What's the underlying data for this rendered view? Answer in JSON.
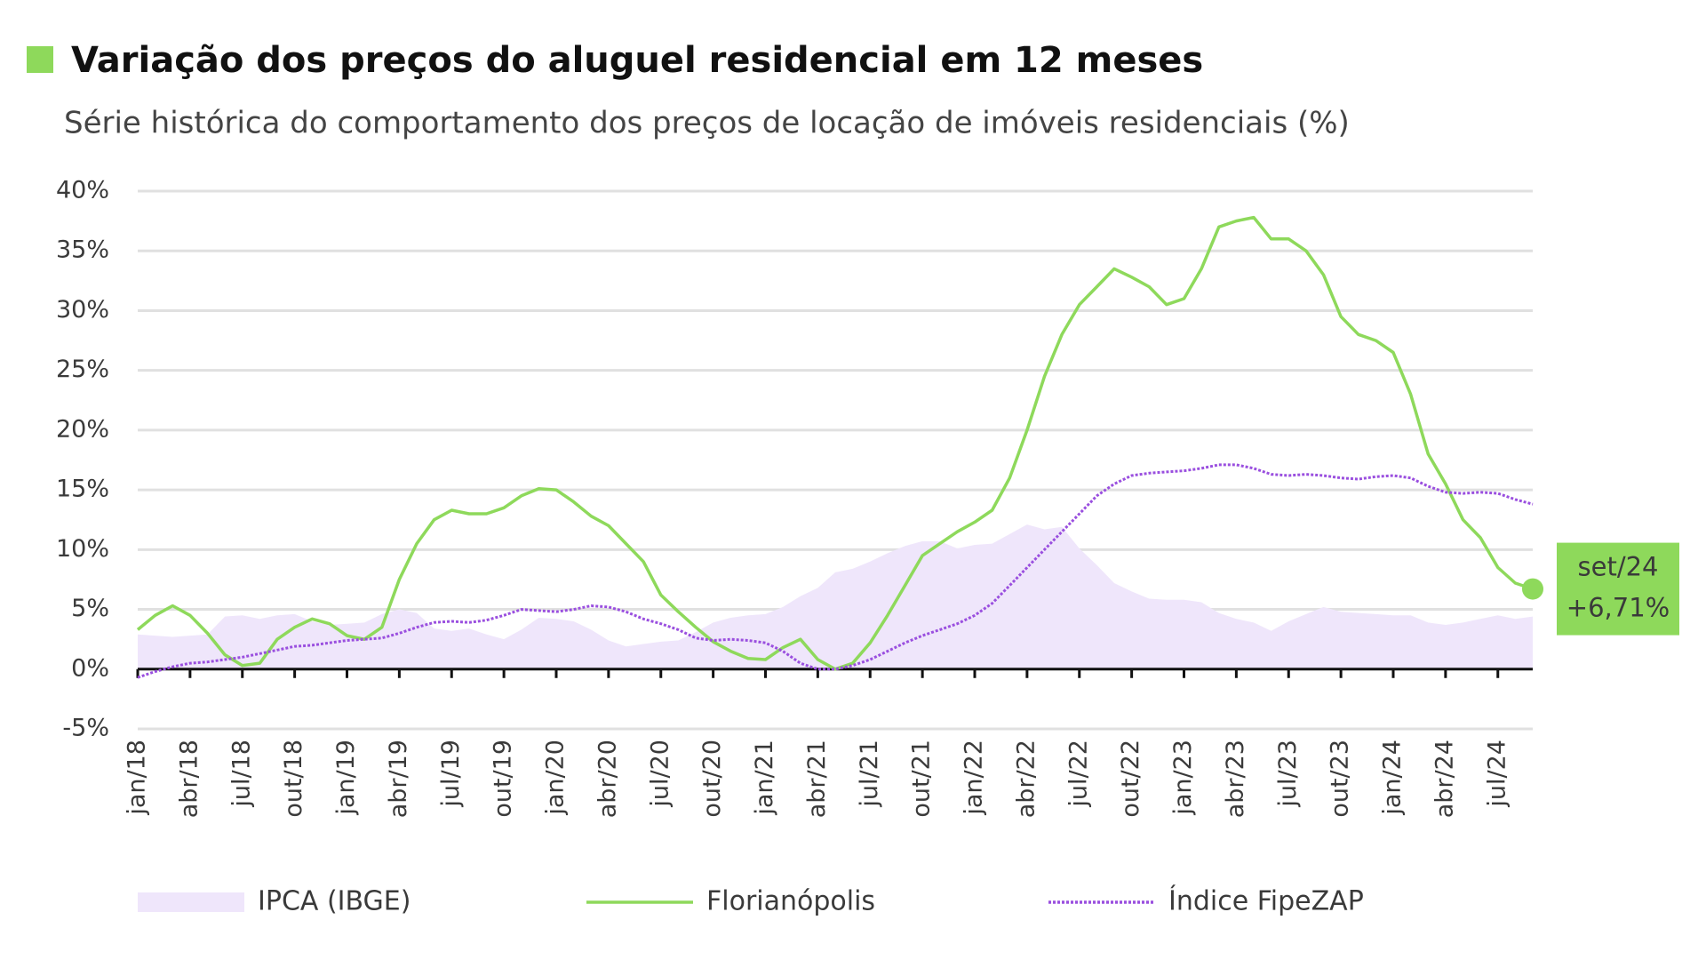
{
  "chart_data": {
    "type": "line",
    "title": "Variação dos preços do aluguel residencial em 12 meses",
    "subtitle": "Série histórica do comportamento dos preços de locação de imóveis residenciais (%)",
    "categories": [
      "jan/18",
      null,
      null,
      "abr/18",
      null,
      null,
      "jul/18",
      null,
      null,
      "out/18",
      null,
      null,
      "jan/19",
      null,
      null,
      "abr/19",
      null,
      null,
      "jul/19",
      null,
      null,
      "out/19",
      null,
      null,
      "jan/20",
      null,
      null,
      "abr/20",
      null,
      null,
      "jul/20",
      null,
      null,
      "out/20",
      null,
      null,
      "jan/21",
      null,
      null,
      "abr/21",
      null,
      null,
      "jul/21",
      null,
      null,
      "out/21",
      null,
      null,
      "jan/22",
      null,
      null,
      "abr/22",
      null,
      null,
      "jul/22",
      null,
      null,
      "out/22",
      null,
      null,
      "jan/23",
      null,
      null,
      "abr/23",
      null,
      null,
      "jul/23",
      null,
      null,
      "out/23",
      null,
      null,
      "jan/24",
      null,
      null,
      "abr/24",
      null,
      null,
      "jul/24",
      null,
      null
    ],
    "series": [
      {
        "name": "IPCA (IBGE)",
        "color": "#efe6fb",
        "style": "area",
        "values": [
          2.9,
          2.8,
          2.7,
          2.8,
          2.9,
          4.4,
          4.5,
          4.2,
          4.5,
          4.6,
          4.0,
          3.7,
          3.8,
          3.9,
          4.6,
          5.0,
          4.7,
          3.4,
          3.2,
          3.4,
          2.9,
          2.5,
          3.3,
          4.3,
          4.2,
          4.0,
          3.3,
          2.4,
          1.9,
          2.1,
          2.3,
          2.4,
          3.1,
          3.9,
          4.3,
          4.5,
          4.6,
          5.2,
          6.1,
          6.8,
          8.1,
          8.4,
          9.0,
          9.7,
          10.3,
          10.7,
          10.7,
          10.1,
          10.4,
          10.5,
          11.3,
          12.1,
          11.7,
          11.9,
          10.1,
          8.7,
          7.2,
          6.5,
          5.9,
          5.8,
          5.8,
          5.6,
          4.7,
          4.2,
          3.9,
          3.2,
          4.0,
          4.6,
          5.2,
          4.8,
          4.7,
          4.6,
          4.5,
          4.5,
          3.9,
          3.7,
          3.9,
          4.2,
          4.5,
          4.2,
          4.4
        ]
      },
      {
        "name": "Florianópolis",
        "color": "#8ed95b",
        "style": "solid",
        "values": [
          3.3,
          4.5,
          5.3,
          4.5,
          3.0,
          1.2,
          0.3,
          0.5,
          2.5,
          3.5,
          4.2,
          3.8,
          2.8,
          2.5,
          3.5,
          7.5,
          10.5,
          12.5,
          13.3,
          13.0,
          13.0,
          13.5,
          14.5,
          15.1,
          15.0,
          14.0,
          12.8,
          12.0,
          10.5,
          9.0,
          6.2,
          4.8,
          3.5,
          2.3,
          1.5,
          0.9,
          0.8,
          1.8,
          2.5,
          0.8,
          0.0,
          0.5,
          2.2,
          4.5,
          7.0,
          9.5,
          10.5,
          11.5,
          12.3,
          13.3,
          16.0,
          20.0,
          24.5,
          28.0,
          30.5,
          32.0,
          33.5,
          32.8,
          32.0,
          30.5,
          31.0,
          33.5,
          37.0,
          37.5,
          37.8,
          36.0,
          36.0,
          35.0,
          33.0,
          29.5,
          28.0,
          27.5,
          26.5,
          23.0,
          18.0,
          15.5,
          12.5,
          11.0,
          8.5,
          7.2,
          6.71
        ],
        "value_labels": [
          null,
          null,
          null,
          null,
          null,
          null,
          null,
          null,
          null,
          null,
          null,
          null,
          null,
          null,
          null,
          null,
          null,
          null,
          null,
          null,
          null,
          null,
          null,
          null,
          null,
          null,
          null,
          null,
          null,
          null,
          null,
          null,
          null,
          null,
          null,
          null,
          null,
          null,
          null,
          null,
          null,
          null,
          null,
          null,
          null,
          null,
          null,
          null,
          null,
          null,
          null,
          null,
          null,
          null,
          null,
          null,
          null,
          null,
          null,
          null,
          null,
          null,
          null,
          null,
          null,
          null,
          null,
          null,
          null,
          null,
          null,
          null,
          null,
          null,
          null,
          null,
          null,
          null,
          null,
          null,
          "+6,71%"
        ]
      },
      {
        "name": "Índice FipeZAP",
        "color": "#9a4fdf",
        "style": "dotted",
        "values": [
          -0.7,
          -0.2,
          0.2,
          0.5,
          0.6,
          0.8,
          1.0,
          1.3,
          1.6,
          1.9,
          2.0,
          2.2,
          2.4,
          2.5,
          2.6,
          3.0,
          3.5,
          3.9,
          4.0,
          3.9,
          4.1,
          4.5,
          5.0,
          4.9,
          4.8,
          5.0,
          5.3,
          5.2,
          4.8,
          4.2,
          3.8,
          3.3,
          2.6,
          2.4,
          2.5,
          2.4,
          2.2,
          1.5,
          0.5,
          0.0,
          0.0,
          0.3,
          0.8,
          1.5,
          2.2,
          2.8,
          3.3,
          3.8,
          4.5,
          5.5,
          7.0,
          8.5,
          10.0,
          11.5,
          13.0,
          14.5,
          15.5,
          16.2,
          16.4,
          16.5,
          16.6,
          16.8,
          17.1,
          17.1,
          16.8,
          16.3,
          16.2,
          16.3,
          16.2,
          16.0,
          15.9,
          16.1,
          16.2,
          16.0,
          15.3,
          14.8,
          14.7,
          14.8,
          14.7,
          14.2,
          13.8
        ]
      }
    ],
    "annotation": "set/24",
    "ylim": [
      -5,
      40
    ],
    "yticks": [
      {
        "value": -5,
        "label": "-5%"
      },
      {
        "value": 0,
        "label": "0%"
      },
      {
        "value": 5,
        "label": "5%"
      },
      {
        "value": 10,
        "label": "10%"
      },
      {
        "value": 15,
        "label": "15%"
      },
      {
        "value": 20,
        "label": "20%"
      },
      {
        "value": 25,
        "label": "25%"
      },
      {
        "value": 30,
        "label": "30%"
      },
      {
        "value": 35,
        "label": "35%"
      },
      {
        "value": 40,
        "label": "40%"
      }
    ],
    "grid": true,
    "legend": "bottom"
  }
}
